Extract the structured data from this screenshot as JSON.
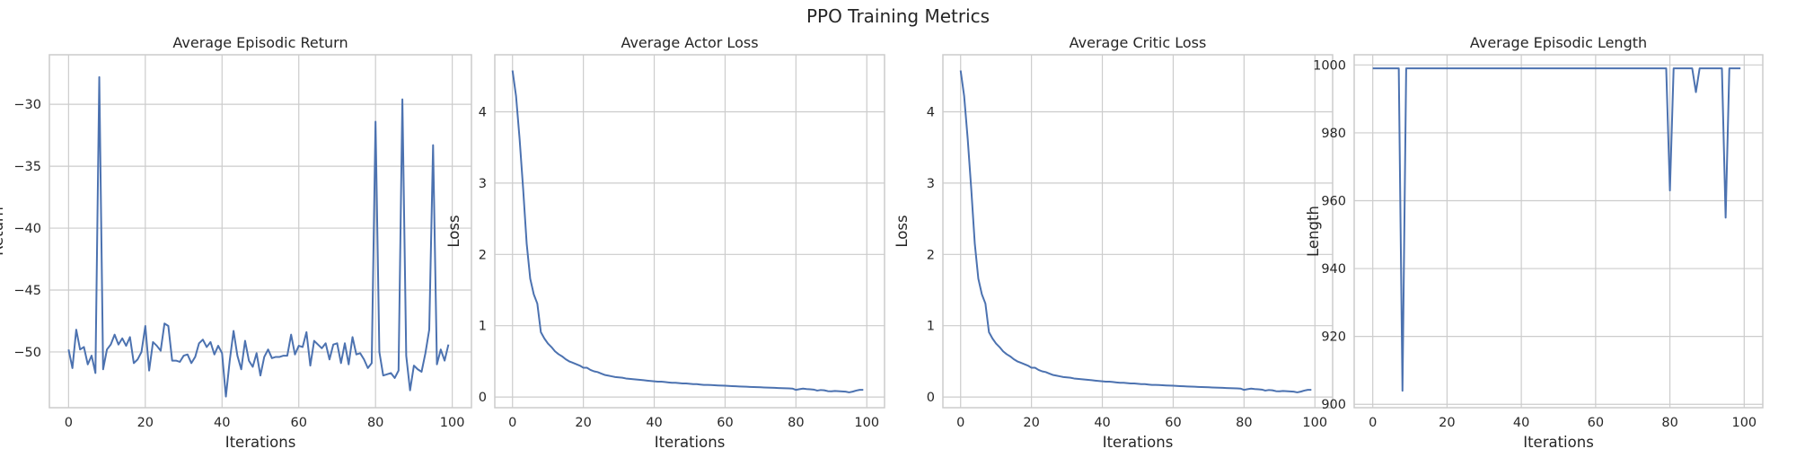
{
  "figure_title": "PPO Training Metrics",
  "colors": {
    "line": "#4c72b0",
    "grid": "#cccccc",
    "frame": "#cccccc"
  },
  "chart_data": [
    {
      "type": "line",
      "title": "Average Episodic Return",
      "xlabel": "Iterations",
      "ylabel": "Return",
      "xlim": [
        -5,
        105
      ],
      "ylim": [
        -54.5,
        -26.0
      ],
      "xticks": [
        0,
        20,
        40,
        60,
        80,
        100
      ],
      "yticks": [
        -50,
        -45,
        -40,
        -35,
        -30
      ],
      "grid": true,
      "x_start": 0,
      "y": [
        -49.8,
        -51.3,
        -48.2,
        -49.8,
        -49.6,
        -51.0,
        -50.3,
        -51.7,
        -27.8,
        -51.4,
        -49.8,
        -49.4,
        -48.6,
        -49.4,
        -48.9,
        -49.5,
        -48.8,
        -50.9,
        -50.6,
        -50.0,
        -47.9,
        -51.5,
        -49.2,
        -49.5,
        -49.9,
        -47.7,
        -47.9,
        -50.7,
        -50.7,
        -50.8,
        -50.3,
        -50.2,
        -50.9,
        -50.4,
        -49.3,
        -49.0,
        -49.6,
        -49.2,
        -50.2,
        -49.5,
        -50.1,
        -53.6,
        -50.7,
        -48.3,
        -50.3,
        -51.4,
        -49.1,
        -50.7,
        -51.2,
        -50.1,
        -51.9,
        -50.4,
        -49.8,
        -50.5,
        -50.4,
        -50.4,
        -50.3,
        -50.3,
        -48.6,
        -50.2,
        -49.5,
        -49.6,
        -48.4,
        -51.1,
        -49.1,
        -49.4,
        -49.7,
        -49.3,
        -50.6,
        -49.4,
        -49.3,
        -50.9,
        -49.3,
        -51.0,
        -48.8,
        -50.2,
        -50.1,
        -50.6,
        -51.3,
        -50.9,
        -31.4,
        -50.0,
        -51.9,
        -51.8,
        -51.7,
        -52.1,
        -51.5,
        -29.6,
        -50.3,
        -53.1,
        -51.1,
        -51.4,
        -51.6,
        -50.1,
        -48.2,
        -33.3,
        -51.0,
        -49.8,
        -50.7,
        -49.4
      ]
    },
    {
      "type": "line",
      "title": "Average Actor Loss",
      "xlabel": "Iterations",
      "ylabel": "Loss",
      "xlim": [
        -5,
        105
      ],
      "ylim": [
        -0.15,
        4.8
      ],
      "xticks": [
        0,
        20,
        40,
        60,
        80,
        100
      ],
      "yticks": [
        0,
        1,
        2,
        3,
        4
      ],
      "grid": true,
      "x_start": 0,
      "y": [
        4.58,
        4.22,
        3.62,
        2.92,
        2.15,
        1.66,
        1.44,
        1.31,
        0.91,
        0.82,
        0.75,
        0.7,
        0.64,
        0.6,
        0.57,
        0.53,
        0.5,
        0.48,
        0.46,
        0.44,
        0.41,
        0.41,
        0.38,
        0.36,
        0.35,
        0.33,
        0.31,
        0.3,
        0.29,
        0.28,
        0.275,
        0.27,
        0.26,
        0.255,
        0.25,
        0.245,
        0.24,
        0.235,
        0.23,
        0.225,
        0.22,
        0.215,
        0.215,
        0.21,
        0.205,
        0.2,
        0.2,
        0.195,
        0.19,
        0.19,
        0.185,
        0.18,
        0.18,
        0.175,
        0.17,
        0.17,
        0.168,
        0.165,
        0.162,
        0.16,
        0.158,
        0.155,
        0.152,
        0.15,
        0.148,
        0.146,
        0.144,
        0.142,
        0.14,
        0.138,
        0.136,
        0.134,
        0.132,
        0.13,
        0.128,
        0.126,
        0.124,
        0.122,
        0.12,
        0.118,
        0.1,
        0.11,
        0.118,
        0.112,
        0.108,
        0.104,
        0.09,
        0.098,
        0.094,
        0.082,
        0.08,
        0.085,
        0.082,
        0.078,
        0.075,
        0.065,
        0.075,
        0.09,
        0.1,
        0.1
      ]
    },
    {
      "type": "line",
      "title": "Average Critic Loss",
      "xlabel": "Iterations",
      "ylabel": "Loss",
      "xlim": [
        -5,
        105
      ],
      "ylim": [
        -0.15,
        4.8
      ],
      "xticks": [
        0,
        20,
        40,
        60,
        80,
        100
      ],
      "yticks": [
        0,
        1,
        2,
        3,
        4
      ],
      "grid": true,
      "x_start": 0,
      "y": [
        4.58,
        4.22,
        3.62,
        2.92,
        2.15,
        1.66,
        1.44,
        1.31,
        0.91,
        0.82,
        0.75,
        0.7,
        0.64,
        0.6,
        0.57,
        0.53,
        0.5,
        0.48,
        0.46,
        0.44,
        0.41,
        0.41,
        0.38,
        0.36,
        0.35,
        0.33,
        0.31,
        0.3,
        0.29,
        0.28,
        0.275,
        0.27,
        0.26,
        0.255,
        0.25,
        0.245,
        0.24,
        0.235,
        0.23,
        0.225,
        0.22,
        0.215,
        0.215,
        0.21,
        0.205,
        0.2,
        0.2,
        0.195,
        0.19,
        0.19,
        0.185,
        0.18,
        0.18,
        0.175,
        0.17,
        0.17,
        0.168,
        0.165,
        0.162,
        0.16,
        0.158,
        0.155,
        0.152,
        0.15,
        0.148,
        0.146,
        0.144,
        0.142,
        0.14,
        0.138,
        0.136,
        0.134,
        0.132,
        0.13,
        0.128,
        0.126,
        0.124,
        0.122,
        0.12,
        0.118,
        0.1,
        0.11,
        0.118,
        0.112,
        0.108,
        0.104,
        0.09,
        0.098,
        0.094,
        0.082,
        0.08,
        0.085,
        0.082,
        0.078,
        0.075,
        0.065,
        0.075,
        0.09,
        0.1,
        0.1
      ]
    },
    {
      "type": "line",
      "title": "Average Episodic Length",
      "xlabel": "Iterations",
      "ylabel": "Length",
      "xlim": [
        -5,
        105
      ],
      "ylim": [
        899,
        1003
      ],
      "xticks": [
        0,
        20,
        40,
        60,
        80,
        100
      ],
      "yticks": [
        900,
        920,
        940,
        960,
        980,
        1000
      ],
      "grid": true,
      "x_start": 0,
      "y": [
        999,
        999,
        999,
        999,
        999,
        999,
        999,
        999,
        904,
        999,
        999,
        999,
        999,
        999,
        999,
        999,
        999,
        999,
        999,
        999,
        999,
        999,
        999,
        999,
        999,
        999,
        999,
        999,
        999,
        999,
        999,
        999,
        999,
        999,
        999,
        999,
        999,
        999,
        999,
        999,
        999,
        999,
        999,
        999,
        999,
        999,
        999,
        999,
        999,
        999,
        999,
        999,
        999,
        999,
        999,
        999,
        999,
        999,
        999,
        999,
        999,
        999,
        999,
        999,
        999,
        999,
        999,
        999,
        999,
        999,
        999,
        999,
        999,
        999,
        999,
        999,
        999,
        999,
        999,
        999,
        963,
        999,
        999,
        999,
        999,
        999,
        999,
        992,
        999,
        999,
        999,
        999,
        999,
        999,
        999,
        955,
        999,
        999,
        999,
        999
      ]
    }
  ]
}
